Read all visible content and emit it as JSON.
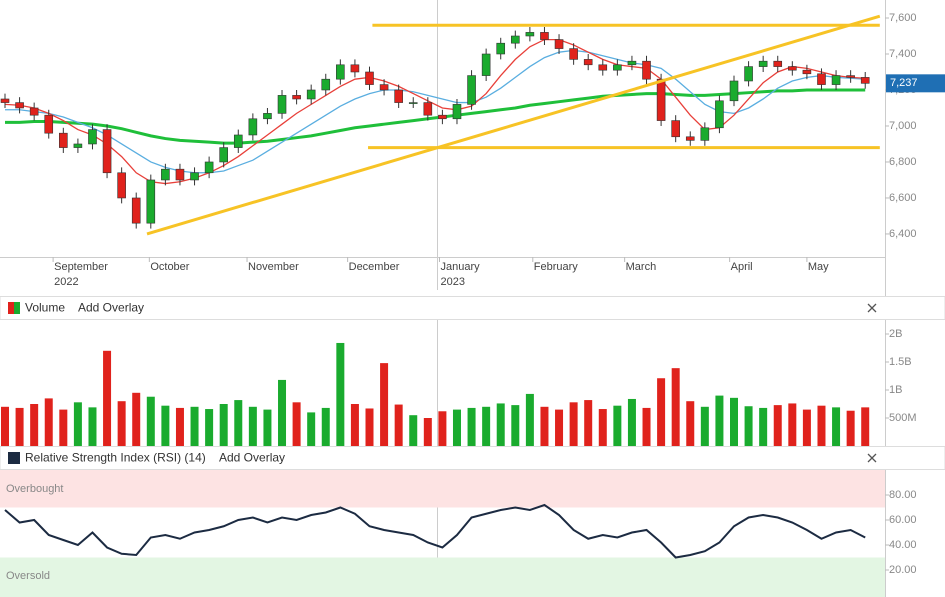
{
  "chart_data": [
    {
      "type": "candlestick",
      "open": [
        7150,
        7130,
        7100,
        7060,
        6960,
        6880,
        6900,
        6980,
        6740,
        6600,
        6460,
        6700,
        6760,
        6700,
        6740,
        6800,
        6880,
        6950,
        7040,
        7070,
        7170,
        7150,
        7200,
        7260,
        7340,
        7300,
        7230,
        7200,
        7130,
        7130,
        7060,
        7040,
        7120,
        7280,
        7400,
        7460,
        7500,
        7520,
        7480,
        7430,
        7370,
        7340,
        7310,
        7340,
        7360,
        7260,
        7030,
        6940,
        6920,
        6990,
        7140,
        7250,
        7330,
        7360,
        7330,
        7310,
        7290,
        7230,
        7280,
        7270
      ],
      "high": [
        7180,
        7160,
        7130,
        7090,
        6990,
        6930,
        7010,
        7010,
        6770,
        6630,
        6730,
        6790,
        6790,
        6770,
        6830,
        6910,
        6980,
        7070,
        7100,
        7200,
        7200,
        7230,
        7290,
        7370,
        7370,
        7330,
        7260,
        7230,
        7160,
        7160,
        7090,
        7150,
        7310,
        7430,
        7490,
        7530,
        7550,
        7550,
        7510,
        7460,
        7400,
        7370,
        7370,
        7390,
        7390,
        7290,
        7060,
        6970,
        7020,
        7170,
        7280,
        7360,
        7390,
        7390,
        7360,
        7340,
        7320,
        7310,
        7310,
        7300
      ],
      "low": [
        7100,
        7070,
        7030,
        6930,
        6850,
        6850,
        6870,
        6710,
        6570,
        6430,
        6430,
        6670,
        6670,
        6670,
        6710,
        6770,
        6850,
        6920,
        7010,
        7040,
        7120,
        7120,
        7170,
        7230,
        7270,
        7200,
        7170,
        7100,
        7100,
        7030,
        7010,
        7010,
        7090,
        7250,
        7370,
        7430,
        7470,
        7450,
        7400,
        7340,
        7310,
        7280,
        7280,
        7310,
        7230,
        7000,
        6910,
        6890,
        6890,
        6960,
        7110,
        7220,
        7300,
        7300,
        7280,
        7260,
        7200,
        7200,
        7240,
        7207
      ],
      "close": [
        7130,
        7100,
        7060,
        6960,
        6880,
        6900,
        6980,
        6740,
        6600,
        6460,
        6700,
        6760,
        6700,
        6740,
        6800,
        6880,
        6950,
        7040,
        7070,
        7170,
        7150,
        7200,
        7260,
        7340,
        7300,
        7230,
        7200,
        7130,
        7130,
        7060,
        7040,
        7120,
        7280,
        7400,
        7460,
        7500,
        7520,
        7480,
        7430,
        7370,
        7340,
        7310,
        7340,
        7360,
        7260,
        7030,
        6940,
        6920,
        6990,
        7140,
        7250,
        7330,
        7360,
        7330,
        7310,
        7290,
        7230,
        7280,
        7270,
        7237
      ],
      "up_color": "#1aab2e",
      "down_color": "#e0221c",
      "overlays": [
        {
          "color": "#1fbf3a",
          "values": [
            7020,
            7020,
            7025,
            7025,
            7020,
            7015,
            7010,
            7000,
            6985,
            6965,
            6945,
            6930,
            6920,
            6915,
            6910,
            6905,
            6905,
            6910,
            6915,
            6925,
            6935,
            6945,
            6960,
            6975,
            6990,
            7000,
            7010,
            7020,
            7030,
            7040,
            7050,
            7060,
            7070,
            7080,
            7090,
            7100,
            7115,
            7125,
            7135,
            7145,
            7155,
            7165,
            7170,
            7175,
            7180,
            7180,
            7175,
            7170,
            7170,
            7175,
            7180,
            7185,
            7190,
            7195,
            7195,
            7200,
            7200,
            7200,
            7200,
            7200
          ]
        },
        {
          "color": "#5aaee0",
          "values": [
            7090,
            7090,
            7080,
            7070,
            7050,
            7020,
            6990,
            6950,
            6900,
            6850,
            6800,
            6770,
            6750,
            6740,
            6740,
            6750,
            6780,
            6810,
            6860,
            6910,
            6960,
            7010,
            7060,
            7110,
            7150,
            7180,
            7200,
            7200,
            7190,
            7170,
            7150,
            7130,
            7130,
            7160,
            7210,
            7270,
            7330,
            7380,
            7410,
            7420,
            7410,
            7390,
            7370,
            7350,
            7340,
            7320,
            7260,
            7190,
            7120,
            7080,
            7070,
            7100,
            7150,
            7210,
            7250,
            7270,
            7280,
            7270,
            7265,
            7260
          ]
        },
        {
          "color": "#e8403a",
          "values": [
            7120,
            7115,
            7100,
            7070,
            7030,
            6980,
            6950,
            6900,
            6830,
            6740,
            6690,
            6680,
            6690,
            6710,
            6740,
            6780,
            6830,
            6890,
            6950,
            7010,
            7070,
            7120,
            7170,
            7220,
            7260,
            7270,
            7250,
            7220,
            7180,
            7140,
            7100,
            7090,
            7110,
            7180,
            7280,
            7370,
            7440,
            7480,
            7480,
            7450,
            7410,
            7370,
            7340,
            7330,
            7320,
            7260,
            7160,
            7060,
            6980,
            6990,
            7060,
            7150,
            7240,
            7300,
            7330,
            7320,
            7300,
            7280,
            7270,
            7265
          ]
        }
      ],
      "trendlines": [
        {
          "color": "#f7c325",
          "x": [
            25.2,
            60
          ],
          "y": [
            7560,
            7560
          ]
        },
        {
          "color": "#f7c325",
          "x": [
            24.9,
            60
          ],
          "y": [
            6880,
            6880
          ]
        },
        {
          "color": "#f7c325",
          "x": [
            9.74,
            60
          ],
          "y": [
            6400,
            7610
          ]
        }
      ],
      "last_price": {
        "value": 7237,
        "label": "7,237"
      },
      "ylim": [
        6272,
        7700
      ],
      "yticks": [
        {
          "value": 6400,
          "label": "6,400"
        },
        {
          "value": 6600,
          "label": "6,600"
        },
        {
          "value": 6800,
          "label": "6,800"
        },
        {
          "value": 7000,
          "label": "7,000"
        },
        {
          "value": 7200,
          "label": "7,200"
        },
        {
          "value": 7400,
          "label": "7,400"
        },
        {
          "value": 7600,
          "label": "7,600"
        }
      ],
      "xticks": [
        {
          "value": 3.3,
          "label": "September"
        },
        {
          "value": 9.9,
          "label": "October"
        },
        {
          "value": 16.6,
          "label": "November"
        },
        {
          "value": 23.5,
          "label": "December"
        },
        {
          "value": 29.8,
          "label": "January"
        },
        {
          "value": 36.2,
          "label": "February"
        },
        {
          "value": 42.5,
          "label": "March"
        },
        {
          "value": 49.7,
          "label": "April"
        },
        {
          "value": 55.0,
          "label": "May"
        }
      ],
      "xtick_years": [
        {
          "value": 3.3,
          "label": "2022"
        },
        {
          "value": 29.8,
          "label": "2023"
        }
      ]
    },
    {
      "type": "bar",
      "title": "Volume",
      "overlay_button": "Add Overlay",
      "values": [
        700000000.0,
        680000000.0,
        750000000.0,
        850000000.0,
        650000000.0,
        780000000.0,
        690000000.0,
        1700000000.0,
        800000000.0,
        950000000.0,
        880000000.0,
        720000000.0,
        680000000.0,
        700000000.0,
        660000000.0,
        750000000.0,
        820000000.0,
        700000000.0,
        650000000.0,
        1180000000.0,
        780000000.0,
        600000000.0,
        680000000.0,
        1840000000.0,
        750000000.0,
        670000000.0,
        1480000000.0,
        740000000.0,
        550000000.0,
        500000000.0,
        620000000.0,
        650000000.0,
        680000000.0,
        700000000.0,
        760000000.0,
        730000000.0,
        930000000.0,
        700000000.0,
        650000000.0,
        780000000.0,
        820000000.0,
        660000000.0,
        720000000.0,
        840000000.0,
        680000000.0,
        1210000000.0,
        1390000000.0,
        800000000.0,
        700000000.0,
        900000000.0,
        860000000.0,
        710000000.0,
        680000000.0,
        730000000.0,
        760000000.0,
        650000000.0,
        720000000.0,
        690000000.0,
        630000000.0,
        690000000.0
      ],
      "ylim": [
        0,
        2250000000
      ],
      "yticks": [
        {
          "value": 500000000,
          "label": "500M"
        },
        {
          "value": 1000000000,
          "label": "1B"
        },
        {
          "value": 1500000000,
          "label": "1.5B"
        },
        {
          "value": 2000000000,
          "label": "2B"
        }
      ]
    },
    {
      "type": "line",
      "title": "Relative Strength Index (RSI) (14)",
      "overlay_button": "Add Overlay",
      "color": "#1c2b42",
      "values": [
        68,
        58,
        60,
        48,
        44,
        40,
        50,
        38,
        33,
        32,
        46,
        48,
        45,
        50,
        52,
        55,
        60,
        62,
        58,
        62,
        60,
        64,
        66,
        70,
        65,
        55,
        52,
        50,
        48,
        42,
        38,
        48,
        62,
        65,
        68,
        70,
        68,
        72,
        64,
        52,
        45,
        48,
        46,
        50,
        52,
        42,
        30,
        32,
        35,
        42,
        55,
        62,
        64,
        62,
        58,
        52,
        45,
        50,
        52,
        46
      ],
      "ylim": [
        -1.6,
        100
      ],
      "yticks": [
        {
          "value": 20,
          "label": "20.00"
        },
        {
          "value": 40,
          "label": "40.00"
        },
        {
          "value": 60,
          "label": "60.00"
        },
        {
          "value": 80,
          "label": "80.00"
        }
      ],
      "zones": [
        {
          "label": "Overbought",
          "range": [
            70,
            100
          ],
          "color": "#fde3e3"
        },
        {
          "label": "Oversold",
          "range": [
            -1.6,
            30
          ],
          "color": "#e3f6e3"
        }
      ]
    }
  ]
}
